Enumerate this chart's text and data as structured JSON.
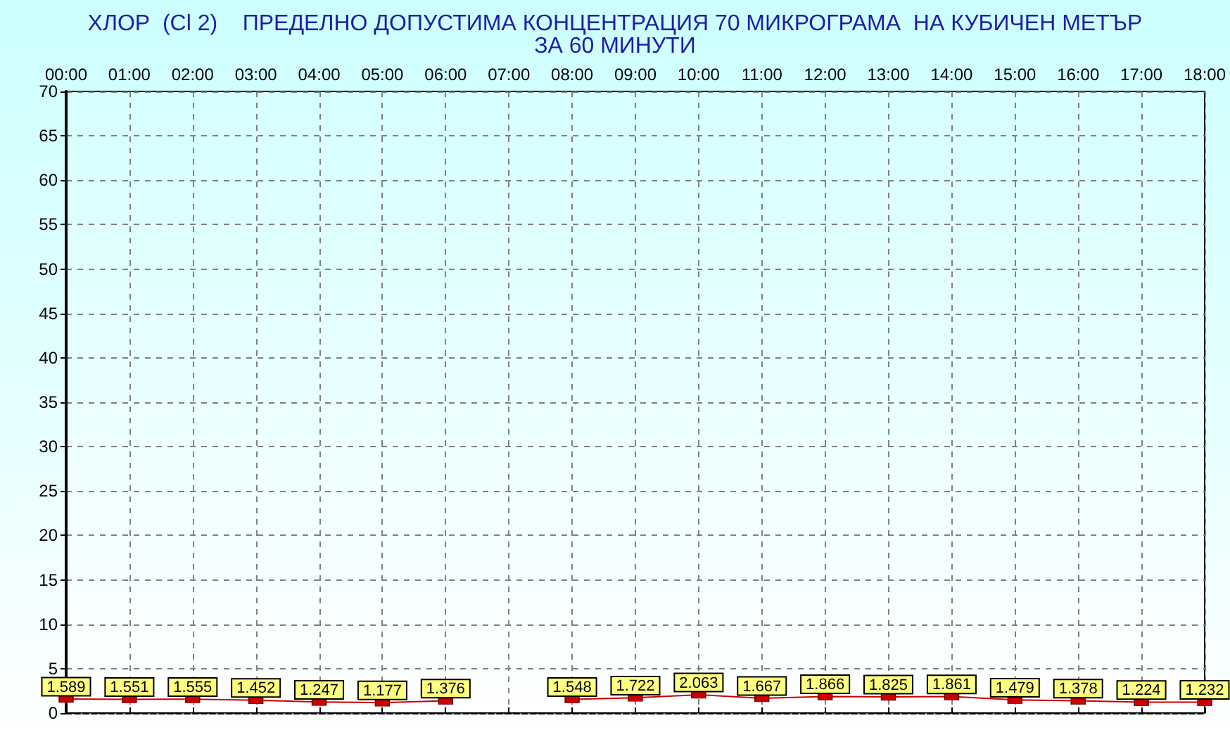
{
  "chart_data": {
    "type": "line",
    "title": "ХЛОР  (Cl 2)    ПРЕДЕЛНО ДОПУСТИМА КОНЦЕНТРАЦИЯ 70 МИКРОГРАМА  НА КУБИЧЕН МЕТЪР",
    "subtitle": "ЗА 60 МИНУТИ",
    "x": [
      0,
      1,
      2,
      3,
      4,
      5,
      6,
      7,
      8,
      9,
      10,
      11,
      12,
      13,
      14,
      15,
      16,
      17,
      18
    ],
    "values": [
      1.589,
      1.551,
      1.555,
      1.452,
      1.247,
      1.177,
      1.376,
      null,
      1.548,
      1.722,
      2.063,
      1.667,
      1.866,
      1.825,
      1.861,
      1.479,
      1.378,
      1.224,
      1.232
    ],
    "color": "#cc0000",
    "xlim": [
      0,
      18
    ],
    "xticks": [
      {
        "value": 0,
        "label": "00:00"
      },
      {
        "value": 1,
        "label": "01:00"
      },
      {
        "value": 2,
        "label": "02:00"
      },
      {
        "value": 3,
        "label": "03:00"
      },
      {
        "value": 4,
        "label": "04:00"
      },
      {
        "value": 5,
        "label": "05:00"
      },
      {
        "value": 6,
        "label": "06:00"
      },
      {
        "value": 7,
        "label": "07:00"
      },
      {
        "value": 8,
        "label": "08:00"
      },
      {
        "value": 9,
        "label": "09:00"
      },
      {
        "value": 10,
        "label": "10:00"
      },
      {
        "value": 11,
        "label": "11:00"
      },
      {
        "value": 12,
        "label": "12:00"
      },
      {
        "value": 13,
        "label": "13:00"
      },
      {
        "value": 14,
        "label": "14:00"
      },
      {
        "value": 15,
        "label": "15:00"
      },
      {
        "value": 16,
        "label": "16:00"
      },
      {
        "value": 17,
        "label": "17:00"
      },
      {
        "value": 18,
        "label": "18:00"
      }
    ],
    "ylim": [
      0,
      70
    ],
    "yticks": [
      0,
      5,
      10,
      15,
      20,
      25,
      30,
      35,
      40,
      45,
      50,
      55,
      60,
      65,
      70
    ],
    "grid": true,
    "marker": "square",
    "line_style": "solid",
    "data_labels": true
  }
}
